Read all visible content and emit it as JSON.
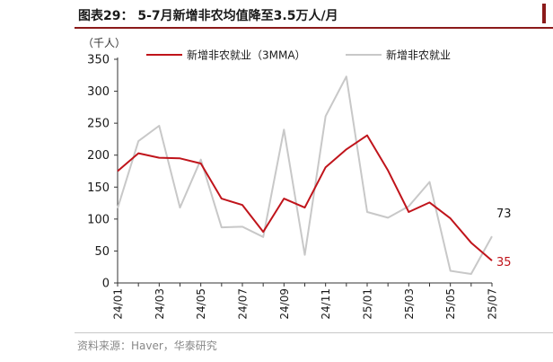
{
  "figure": {
    "title": "图表29： 5-7月新增非农均值降至3.5万人/月",
    "source": "资料来源：Haver，华泰研究"
  },
  "colors": {
    "series_3mma": "#c0141b",
    "series_raw": "#c8c8c8",
    "axis": "#333333",
    "accent": "#8b1a1a"
  },
  "chart_data": {
    "type": "line",
    "title": "5-7月新增非农均值降至3.5万人/月",
    "ylabel": "（千人）",
    "xlabel": "",
    "ylim": [
      0,
      350
    ],
    "yticks": [
      0,
      50,
      100,
      150,
      200,
      250,
      300,
      350
    ],
    "x": [
      "24/01",
      "24/02",
      "24/03",
      "24/04",
      "24/05",
      "24/06",
      "24/07",
      "24/08",
      "24/09",
      "24/10",
      "24/11",
      "24/12",
      "25/01",
      "25/02",
      "25/03",
      "25/04",
      "25/05",
      "25/06",
      "25/07"
    ],
    "xtick_labels": [
      "24/01",
      "24/03",
      "24/05",
      "24/07",
      "24/09",
      "24/11",
      "25/01",
      "25/03",
      "25/05",
      "25/07"
    ],
    "legend_position": "top",
    "series": [
      {
        "name": "新增非农就业（3MMA）",
        "values": [
          175,
          203,
          196,
          195,
          187,
          132,
          122,
          80,
          132,
          118,
          181,
          209,
          231,
          176,
          111,
          126,
          101,
          63,
          35
        ]
      },
      {
        "name": "新增非农就业",
        "values": [
          117,
          222,
          246,
          118,
          193,
          87,
          88,
          72,
          240,
          44,
          261,
          323,
          111,
          102,
          120,
          158,
          19,
          14,
          73
        ]
      }
    ],
    "annotations": [
      {
        "series": 1,
        "index": 18,
        "text": "73"
      },
      {
        "series": 0,
        "index": 18,
        "text": "35"
      }
    ]
  }
}
